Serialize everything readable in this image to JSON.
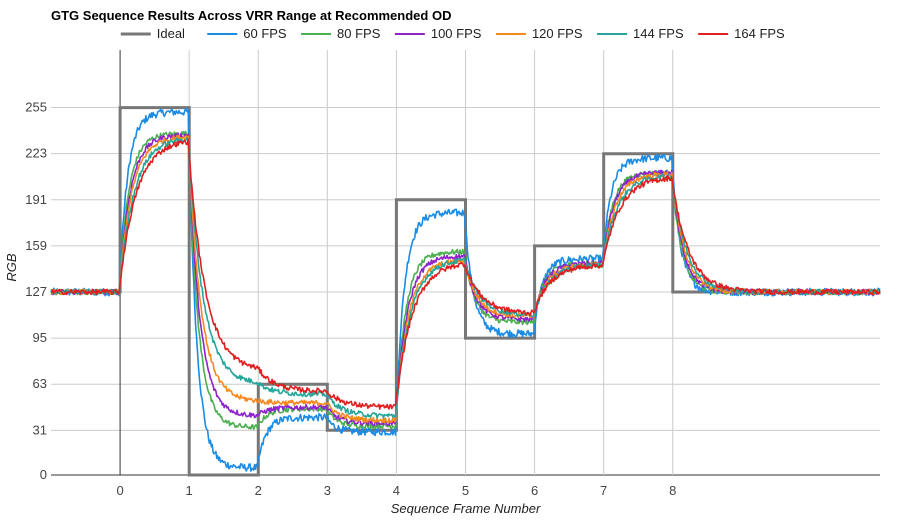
{
  "chart_data": {
    "type": "line",
    "title": "GTG Sequence Results Across VRR Range at Recommended OD",
    "xlabel": "Sequence Frame Number",
    "ylabel": "RGB",
    "xlim": [
      -1,
      11
    ],
    "ylim": [
      0,
      288
    ],
    "x_ticks": [
      0,
      1,
      2,
      3,
      4,
      5,
      6,
      7,
      8
    ],
    "x_tick_labels": [
      "0",
      "1",
      "2",
      "3",
      "4",
      "5",
      "6",
      "7",
      "8"
    ],
    "y_ticks": [
      0,
      31,
      63,
      95,
      127,
      159,
      191,
      223,
      255
    ],
    "y_tick_labels": [
      "0",
      "31",
      "63",
      "95",
      "127",
      "159",
      "191",
      "223",
      "255"
    ],
    "grid": true,
    "legend_position": "top",
    "ideal": {
      "name": "Ideal",
      "color": "#777777",
      "x": [
        -1,
        0,
        0,
        1,
        1,
        2,
        2,
        3,
        3,
        4,
        4,
        5,
        5,
        6,
        6,
        7,
        7,
        8,
        8,
        11
      ],
      "y": [
        127,
        127,
        255,
        255,
        0,
        0,
        63,
        63,
        31,
        31,
        191,
        191,
        95,
        95,
        159,
        159,
        223,
        223,
        127,
        127
      ]
    },
    "series": [
      {
        "name": "60 FPS",
        "color": "#1a8ce6",
        "plateaus": [
          127,
          252,
          5,
          40,
          30,
          182,
          98,
          150,
          220,
          127
        ]
      },
      {
        "name": "80 FPS",
        "color": "#4caf50",
        "plateaus": [
          127,
          237,
          33,
          46,
          34,
          155,
          106,
          147,
          210,
          127
        ]
      },
      {
        "name": "100 FPS",
        "color": "#8e24cc",
        "plateaus": [
          127,
          236,
          41,
          47,
          36,
          152,
          108,
          147,
          210,
          127
        ]
      },
      {
        "name": "120 FPS",
        "color": "#f5891f",
        "plateaus": [
          127,
          235,
          51,
          50,
          38,
          149,
          110,
          146,
          209,
          127
        ]
      },
      {
        "name": "144 FPS",
        "color": "#26a69a",
        "plateaus": [
          127,
          234,
          63,
          56,
          41,
          150,
          111,
          146,
          208,
          127
        ]
      },
      {
        "name": "164 FPS",
        "color": "#e02020",
        "plateaus": [
          127,
          233,
          72,
          58,
          47,
          148,
          112,
          146,
          207,
          127
        ]
      }
    ],
    "series_note": "plateaus = approximate settled RGB value at the end of frame intervals starting at x = -1, 0, 1, 2, 3, 4, 5, 6, 7, 8 (last value holds to x = 11)"
  }
}
